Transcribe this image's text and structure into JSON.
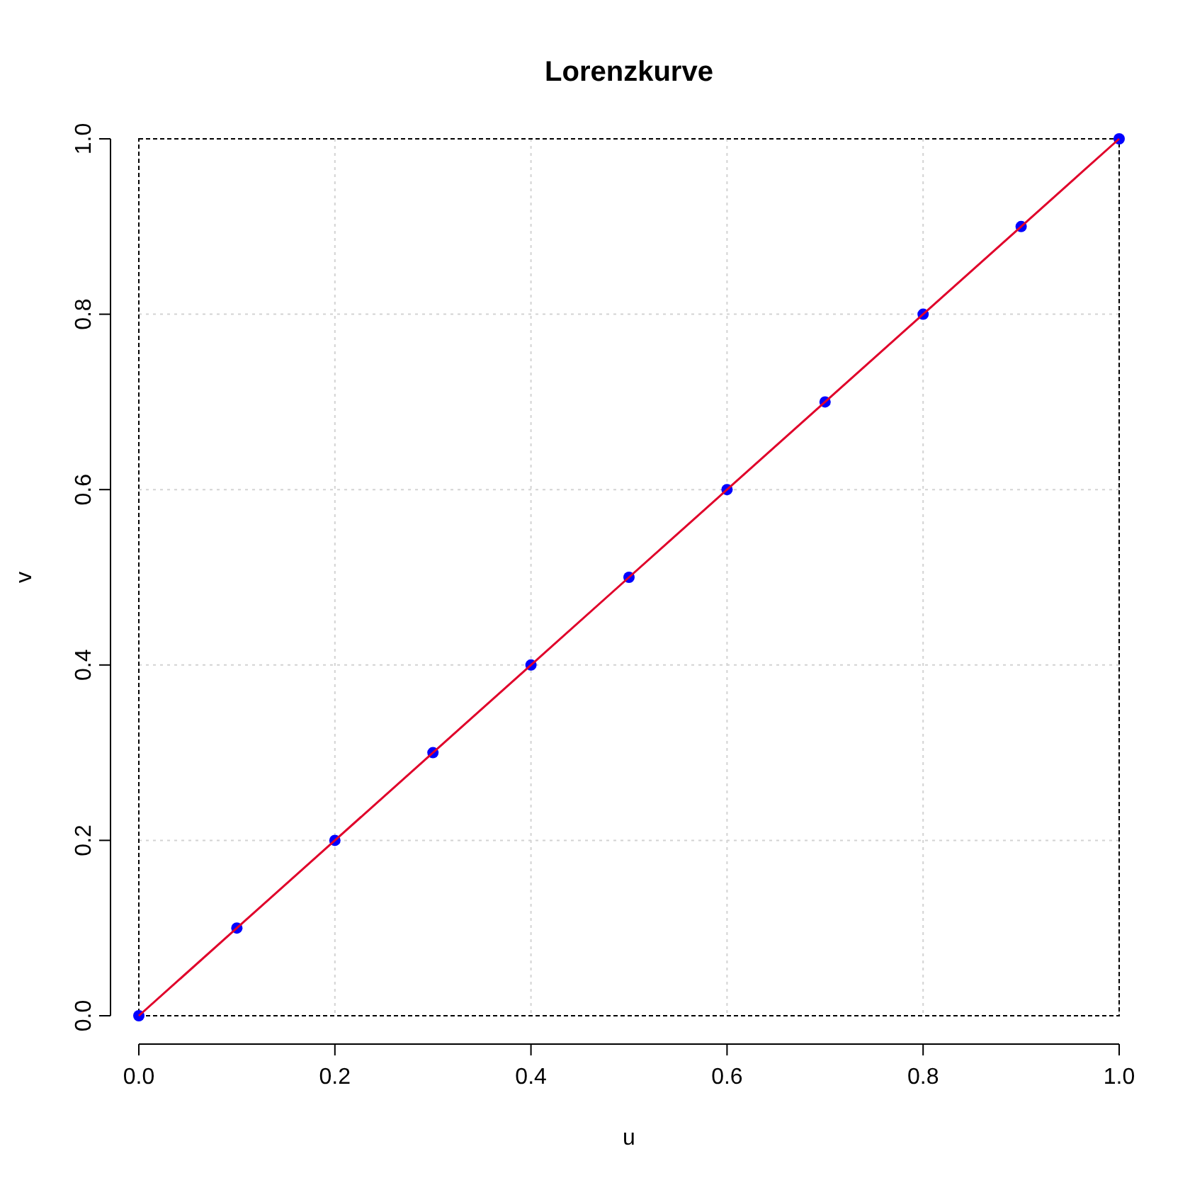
{
  "chart_data": {
    "type": "line",
    "title": "Lorenzkurve",
    "xlabel": "u",
    "ylabel": "v",
    "x": [
      0,
      0.1,
      0.2,
      0.3,
      0.4,
      0.5,
      0.6,
      0.7,
      0.8,
      0.9,
      1
    ],
    "series": [
      {
        "type": "scatter",
        "color": "#0000ff",
        "marker": "circle",
        "values": [
          0,
          0.1,
          0.2,
          0.3,
          0.4,
          0.5,
          0.6,
          0.7,
          0.8,
          0.9,
          1
        ]
      },
      {
        "color": "#e0002a",
        "values": [
          0,
          0.1,
          0.2,
          0.3,
          0.4,
          0.5,
          0.6,
          0.7,
          0.8,
          0.9,
          1
        ]
      }
    ],
    "xlim": [
      0,
      1
    ],
    "ylim": [
      0,
      1
    ],
    "xticks": [
      {
        "value": 0,
        "label": "0.0"
      },
      0.2,
      0.4,
      0.6,
      0.8,
      {
        "value": 1,
        "label": "1.0"
      }
    ],
    "yticks": [
      {
        "value": 0,
        "label": "0.0"
      },
      0.2,
      0.4,
      0.6,
      0.8,
      {
        "value": 1,
        "label": "1.0"
      }
    ],
    "grid": true
  }
}
